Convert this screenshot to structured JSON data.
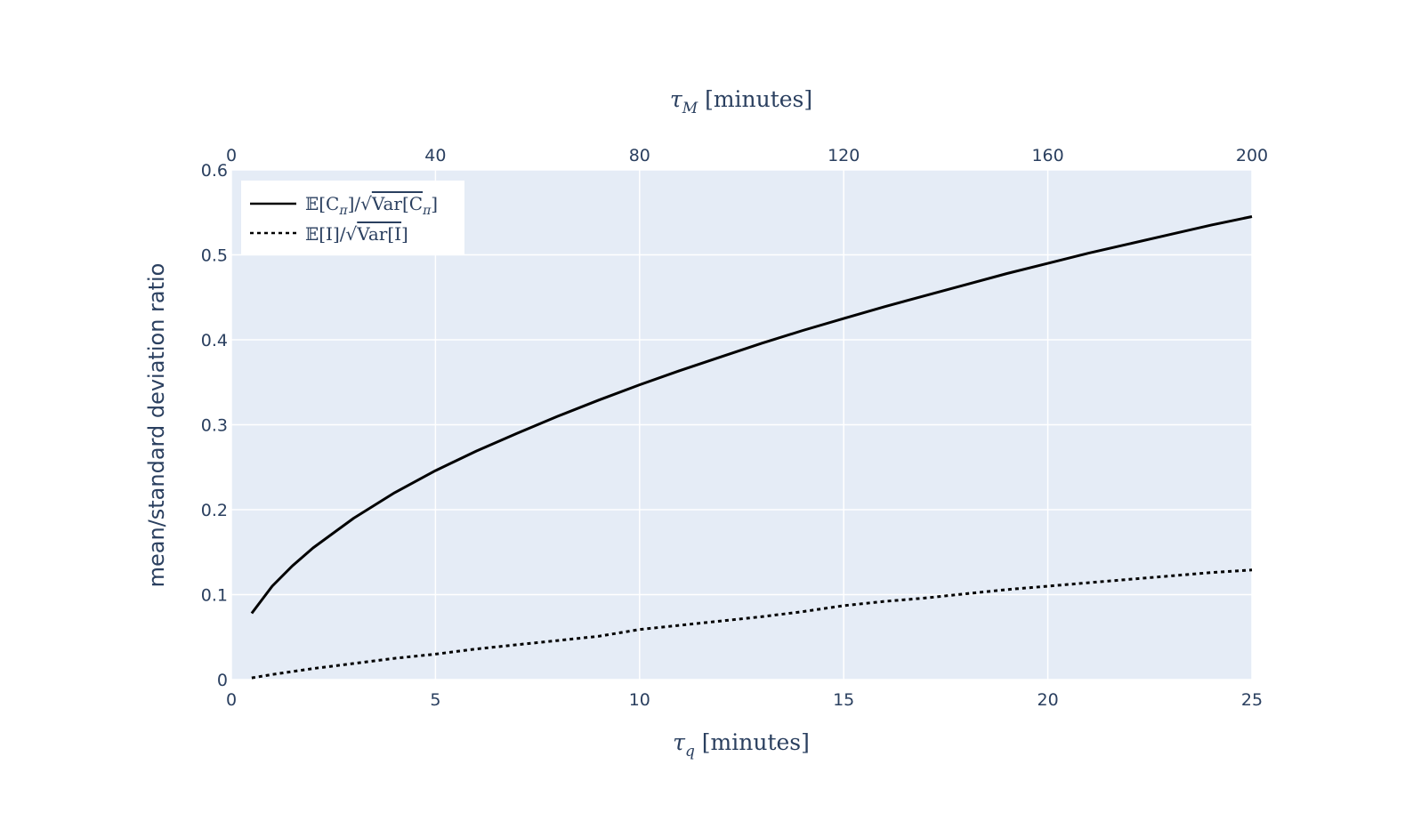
{
  "chart_data": {
    "type": "line",
    "xlabel_bottom": {
      "sym": "τ",
      "sub": "q",
      "unit": "[minutes]"
    },
    "xlabel_top": {
      "sym": "τ",
      "sub": "M",
      "unit": "[minutes]"
    },
    "ylabel": "mean/standard deviation ratio",
    "xlim": [
      0,
      25
    ],
    "ylim": [
      0,
      0.6
    ],
    "top_xlim": [
      0,
      200
    ],
    "x_ticks": [
      "0",
      "5",
      "10",
      "15",
      "20",
      "25"
    ],
    "top_x_ticks": [
      "0",
      "40",
      "80",
      "120",
      "160",
      "200"
    ],
    "y_ticks": [
      "0",
      "0.1",
      "0.2",
      "0.3",
      "0.4",
      "0.5",
      "0.6"
    ],
    "grid": true,
    "legend_position": "top-left",
    "colors": {
      "plot_bg": "#e5ecf6",
      "grid": "#ffffff",
      "line": "#000000",
      "text": "#2a3f5f"
    },
    "series": [
      {
        "name": "𝔼[Cπ]/√Var[Cπ]",
        "legend": {
          "pre": "𝔼[C",
          "sub": "π",
          "mid": "]/√",
          "var": "Var[C",
          "var_sub": "π",
          "post": "]"
        },
        "dash": "solid",
        "x": [
          0.5,
          1,
          1.5,
          2,
          3,
          4,
          5,
          6,
          7,
          8,
          9,
          10,
          11,
          12,
          13,
          14,
          15,
          16,
          17,
          18,
          19,
          20,
          21,
          22,
          23,
          24,
          25
        ],
        "y": [
          0.078,
          0.11,
          0.134,
          0.155,
          0.19,
          0.22,
          0.246,
          0.269,
          0.29,
          0.31,
          0.329,
          0.347,
          0.364,
          0.38,
          0.396,
          0.411,
          0.425,
          0.439,
          0.452,
          0.465,
          0.478,
          0.49,
          0.502,
          0.513,
          0.524,
          0.535,
          0.545
        ]
      },
      {
        "name": "𝔼[I]/√Var[I]",
        "legend": {
          "pre": "𝔼[I",
          "sub": "",
          "mid": "]/√",
          "var": "Var[I",
          "var_sub": "",
          "post": "]"
        },
        "dash": "dot",
        "x": [
          0.5,
          1,
          2,
          3,
          4,
          5,
          6,
          7,
          8,
          9,
          10,
          11,
          12,
          13,
          14,
          15,
          16,
          17,
          18,
          19,
          20,
          21,
          22,
          23,
          24,
          25
        ],
        "y": [
          0.002,
          0.006,
          0.013,
          0.019,
          0.025,
          0.03,
          0.036,
          0.041,
          0.046,
          0.051,
          0.059,
          0.064,
          0.069,
          0.074,
          0.08,
          0.087,
          0.092,
          0.096,
          0.101,
          0.106,
          0.11,
          0.114,
          0.118,
          0.122,
          0.126,
          0.129
        ]
      }
    ]
  }
}
